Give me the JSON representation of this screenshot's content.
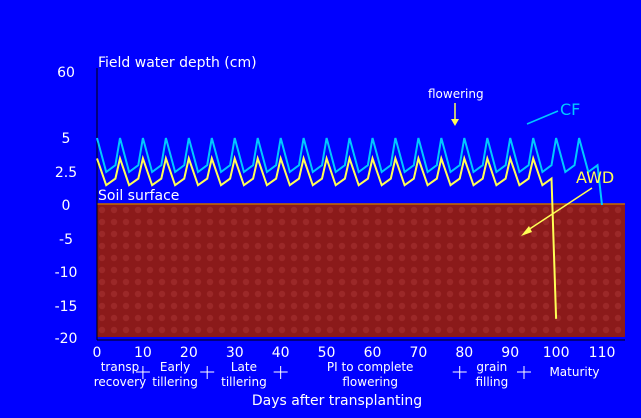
{
  "chart_data": {
    "type": "line",
    "title": "Field water depth (cm)",
    "xlabel": "Days after transplanting",
    "ylabel": "Field water depth (cm)",
    "x_ticks": [
      0,
      10,
      20,
      30,
      40,
      50,
      60,
      70,
      80,
      90,
      100,
      110
    ],
    "y_tick_labels": [
      "60",
      "5",
      "2.5",
      "0",
      "-5",
      "-10",
      "-15",
      "-20"
    ],
    "y_tick_values": [
      60,
      5,
      2.5,
      0,
      -5,
      -10,
      -15,
      -20
    ],
    "xlim": [
      0,
      115
    ],
    "ylim": [
      -20,
      60
    ],
    "y_axis_note": "non-linear scale: 0 to 5 stretched; 5 to 60 compressed",
    "growth_stages": [
      {
        "label_1": "transp",
        "label_2": "recovery",
        "start": 0,
        "end": 10
      },
      {
        "label_1": "Early",
        "label_2": "tillering",
        "start": 10,
        "end": 24
      },
      {
        "label_1": "Late",
        "label_2": "tillering",
        "start": 24,
        "end": 40
      },
      {
        "label_1": "PI to complete",
        "label_2": "flowering",
        "start": 40,
        "end": 79
      },
      {
        "label_1": "grain",
        "label_2": "filling",
        "start": 79,
        "end": 93
      },
      {
        "label_1": "Maturity",
        "label_2": "",
        "start": 93,
        "end": 115
      }
    ],
    "annotations": {
      "soil_surface": "Soil surface",
      "flowering": "flowering",
      "cf": "CF",
      "awd": "AWD"
    },
    "colors": {
      "background": "#0000ff",
      "soil": "#8b1a1a",
      "cf_series": "#00c8ff",
      "awd_series": "#ffff55",
      "text": "#ffffff"
    },
    "series": [
      {
        "name": "CF",
        "x": [
          0,
          2,
          4,
          5,
          7,
          9,
          10,
          12,
          14,
          15,
          17,
          19,
          20,
          22,
          24,
          25,
          27,
          29,
          30,
          32,
          34,
          35,
          37,
          39,
          40,
          42,
          44,
          45,
          47,
          49,
          50,
          52,
          54,
          55,
          57,
          59,
          60,
          62,
          64,
          65,
          67,
          69,
          70,
          72,
          74,
          75,
          77,
          79,
          80,
          82,
          84,
          85,
          87,
          89,
          90,
          92,
          94,
          95,
          97,
          99,
          100,
          102,
          104,
          105,
          107,
          109,
          110
        ],
        "y": [
          5,
          2.5,
          3,
          5,
          2.5,
          3,
          5,
          2.5,
          3,
          5,
          2.5,
          3,
          5,
          2.5,
          3,
          5,
          2.5,
          3,
          5,
          2.5,
          3,
          5,
          2.5,
          3,
          5,
          2.5,
          3,
          5,
          2.5,
          3,
          5,
          2.5,
          3,
          5,
          2.5,
          3,
          5,
          2.5,
          3,
          5,
          2.5,
          3,
          5,
          2.5,
          3,
          5,
          2.5,
          3,
          5,
          2.5,
          3,
          5,
          2.5,
          3,
          5,
          2.5,
          3,
          5,
          2.5,
          3,
          5,
          2.5,
          3,
          5,
          2.5,
          3,
          0
        ]
      },
      {
        "name": "AWD",
        "x": [
          0,
          2,
          4,
          5,
          7,
          9,
          10,
          12,
          14,
          15,
          17,
          19,
          20,
          22,
          24,
          25,
          27,
          29,
          30,
          32,
          34,
          35,
          37,
          39,
          40,
          42,
          44,
          45,
          47,
          49,
          50,
          52,
          54,
          55,
          57,
          59,
          60,
          62,
          64,
          65,
          67,
          69,
          70,
          72,
          74,
          75,
          77,
          79,
          80,
          82,
          84,
          85,
          87,
          89,
          90,
          92,
          94,
          95,
          97,
          99,
          100
        ],
        "y": [
          3.5,
          1.5,
          2,
          3.5,
          1.5,
          2,
          3.5,
          1.5,
          2,
          3.5,
          1.5,
          2,
          3.5,
          1.5,
          2,
          3.5,
          1.5,
          2,
          3.5,
          1.5,
          2,
          3.5,
          1.5,
          2,
          3.5,
          1.5,
          2,
          3.5,
          1.5,
          2,
          3.5,
          1.5,
          2,
          3.5,
          1.5,
          2,
          3.5,
          1.5,
          2,
          3.5,
          1.5,
          2,
          3.5,
          1.5,
          2,
          3.5,
          1.5,
          2,
          3.5,
          1.5,
          2,
          3.5,
          1.5,
          2,
          3.5,
          1.5,
          2,
          3.5,
          1.5,
          2,
          -17
        ]
      }
    ]
  }
}
